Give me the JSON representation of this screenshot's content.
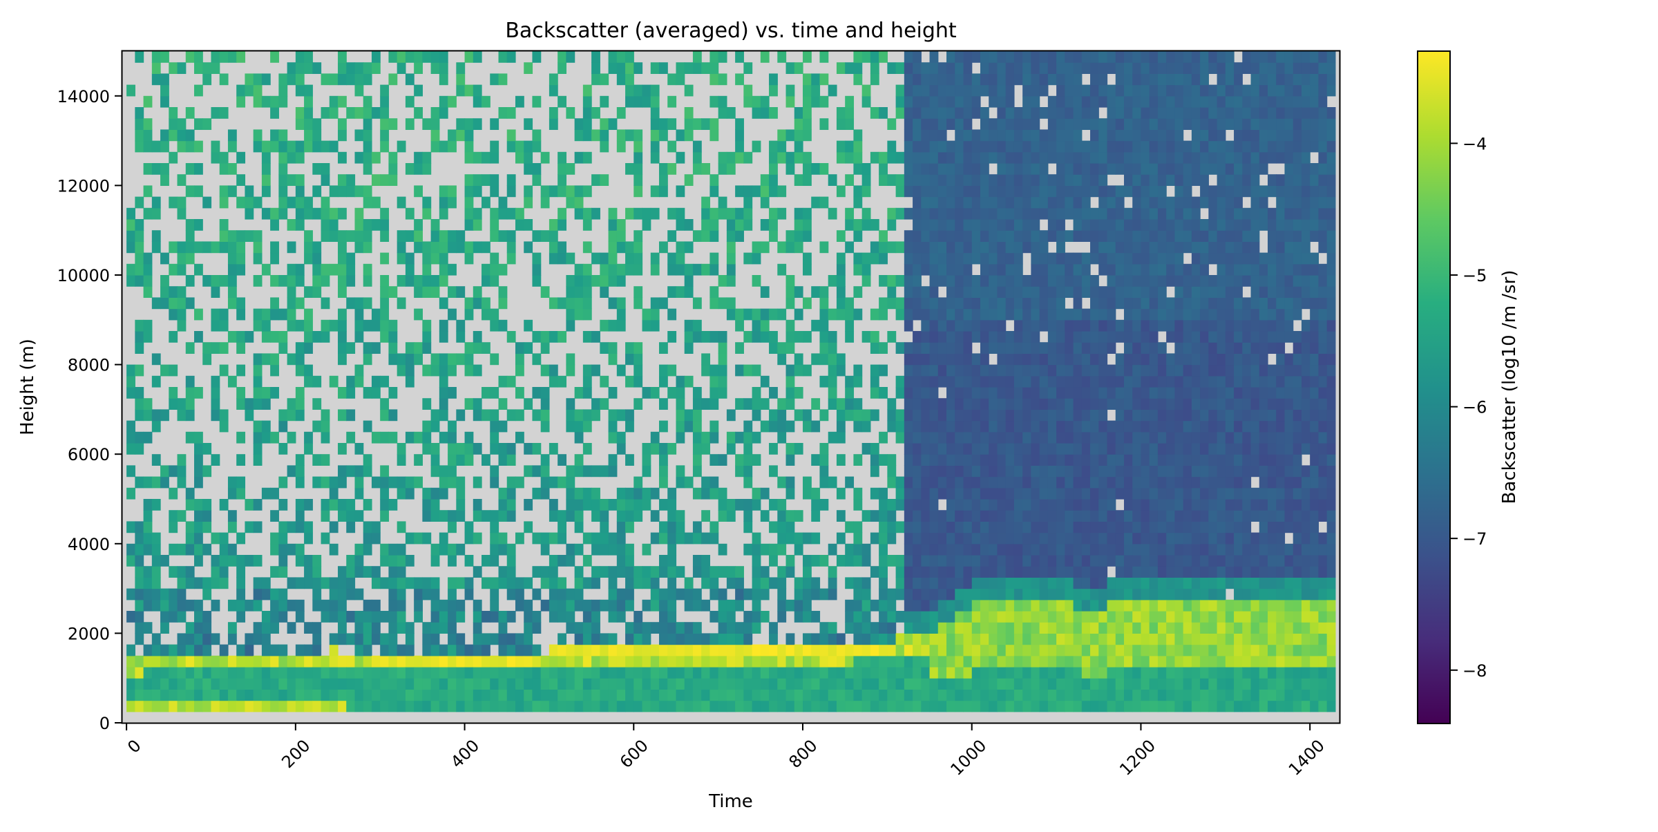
{
  "chart_data": {
    "type": "heatmap",
    "title": "Backscatter (averaged) vs. time and height",
    "xlabel": "Time",
    "ylabel": "Height (m)",
    "xlim": [
      -5,
      1435
    ],
    "ylim": [
      0,
      15000
    ],
    "xticks": [
      0,
      200,
      400,
      600,
      800,
      1000,
      1200,
      1400
    ],
    "yticks": [
      0,
      2000,
      4000,
      6000,
      8000,
      10000,
      12000,
      14000
    ],
    "colormap": "viridis",
    "missing_color": "#d3d3d3",
    "time_bin": 10,
    "height_bin": 250,
    "lowest_valid_height": 250,
    "colorbar": {
      "label": "Backscatter (log10 /m /sr)",
      "range": [
        -8.4,
        -3.3
      ],
      "ticks": [
        -8,
        -7,
        -6,
        -5,
        -4
      ]
    },
    "regime_summary": [
      {
        "time_range": [
          0,
          920
        ],
        "height_range": [
          2000,
          15000
        ],
        "description_value": "sparse, mean approx. -5.7, frequent missing"
      },
      {
        "time_range": [
          920,
          1430
        ],
        "height_range": [
          3000,
          15000
        ],
        "description_value": "continuous, mean approx. -7.0"
      },
      {
        "time_range": [
          0,
          1430
        ],
        "height_range": [
          250,
          2000
        ],
        "description_value": "boundary layer, -5.6 to -3.5, maxima near top"
      }
    ],
    "boundary_layer_top": [
      [
        0,
        1350
      ],
      [
        150,
        1500
      ],
      [
        250,
        1550
      ],
      [
        300,
        1400
      ],
      [
        650,
        1650
      ],
      [
        850,
        1650
      ],
      [
        950,
        1900
      ],
      [
        1000,
        2550
      ],
      [
        1100,
        2650
      ],
      [
        1150,
        2400
      ],
      [
        1180,
        2700
      ],
      [
        1430,
        2700
      ]
    ]
  }
}
